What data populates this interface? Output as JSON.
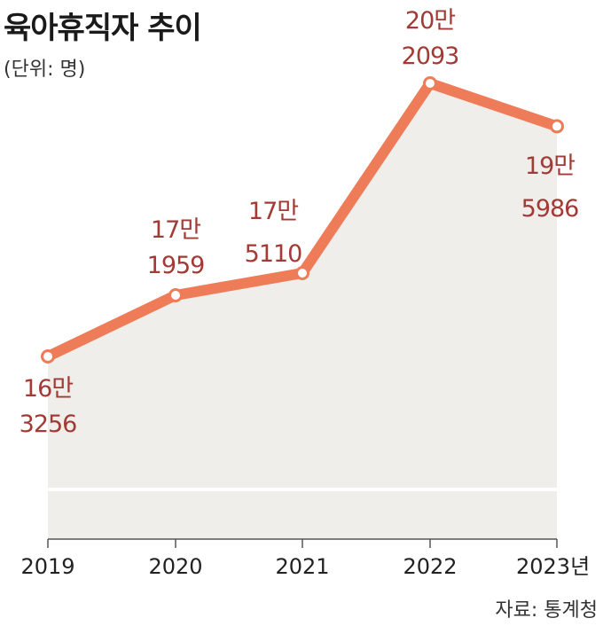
{
  "header": {
    "title": "육아휴직자 추이",
    "unit": "(단위: 명)"
  },
  "footer": {
    "source": "자료: 통계청"
  },
  "colors": {
    "line": "#ef7c59",
    "area": "#efeeea",
    "label": "#a23a35",
    "axis": "#555555"
  },
  "chart_data": {
    "type": "area",
    "categories": [
      "2019",
      "2020",
      "2021",
      "2022",
      "2023년"
    ],
    "values": [
      163256,
      171959,
      175110,
      202093,
      195986
    ],
    "labels": [
      [
        "16만",
        "3256"
      ],
      [
        "17만",
        "1959"
      ],
      [
        "17만",
        "5110"
      ],
      [
        "20만",
        "2093"
      ],
      [
        "19만",
        "5986"
      ]
    ],
    "grid": false,
    "legend": "none"
  }
}
